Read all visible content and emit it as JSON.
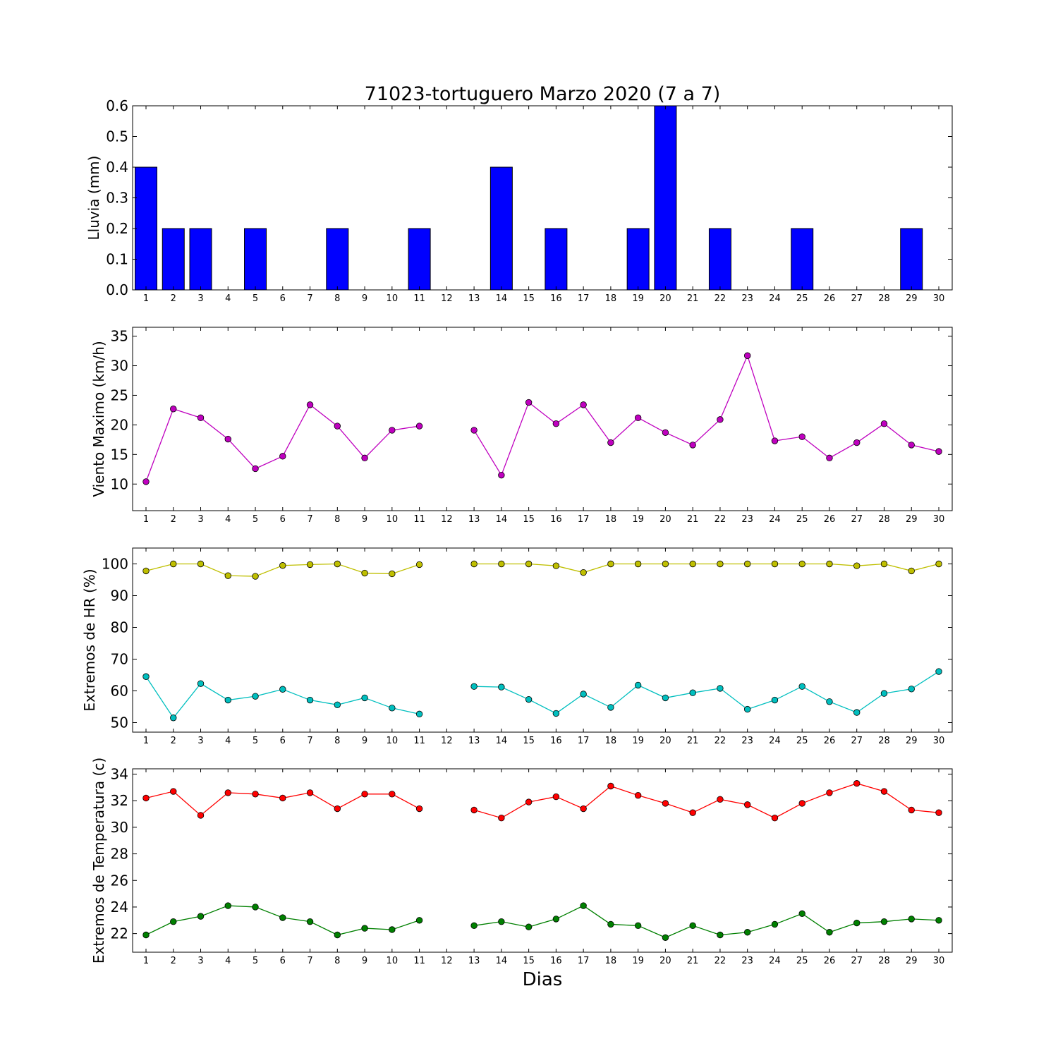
{
  "title": "71023-tortuguero Marzo 2020  (7 a 7)",
  "xlabel": "Dias",
  "chart_data": [
    {
      "type": "bar",
      "ylabel": "Lluvia (mm)",
      "ylim": [
        0,
        0.6
      ],
      "yticks": [
        0.0,
        0.1,
        0.2,
        0.3,
        0.4,
        0.5,
        0.6
      ],
      "ytick_decimals": 1,
      "categories": [
        1,
        2,
        3,
        4,
        5,
        6,
        7,
        8,
        9,
        10,
        11,
        12,
        13,
        14,
        15,
        16,
        17,
        18,
        19,
        20,
        21,
        22,
        23,
        24,
        25,
        26,
        27,
        28,
        29,
        30
      ],
      "series": [
        {
          "values": [
            0.4,
            0.2,
            0.2,
            0,
            0.2,
            0,
            0,
            0.2,
            0,
            0,
            0.2,
            0,
            0,
            0.4,
            0,
            0.2,
            0,
            0,
            0.2,
            0.6,
            0,
            0.2,
            0,
            0,
            0.2,
            0,
            0,
            0,
            0.2,
            0
          ],
          "color": "#0000ff"
        }
      ]
    },
    {
      "type": "line",
      "ylabel": "Viento Maximo (km/h)",
      "ylim": [
        5.5,
        36.5
      ],
      "yticks": [
        10,
        15,
        20,
        25,
        30,
        35
      ],
      "ytick_decimals": 0,
      "x": [
        1,
        2,
        3,
        4,
        5,
        6,
        7,
        8,
        9,
        10,
        11,
        12,
        13,
        14,
        15,
        16,
        17,
        18,
        19,
        20,
        21,
        22,
        23,
        24,
        25,
        26,
        27,
        28,
        29,
        30
      ],
      "series": [
        {
          "values": [
            10.4,
            22.7,
            21.2,
            17.6,
            12.6,
            14.7,
            23.4,
            19.8,
            14.4,
            19.1,
            19.8,
            null,
            19.1,
            11.5,
            23.8,
            20.2,
            23.4,
            17.0,
            21.2,
            18.7,
            16.6,
            20.9,
            31.7,
            17.3,
            18.0,
            14.4,
            17.0,
            20.2,
            16.6,
            15.5
          ],
          "color": "#bf00bf"
        }
      ]
    },
    {
      "type": "line",
      "ylabel": "Extremos de HR (%)",
      "ylim": [
        47,
        105
      ],
      "yticks": [
        50,
        60,
        70,
        80,
        90,
        100
      ],
      "ytick_decimals": 0,
      "x": [
        1,
        2,
        3,
        4,
        5,
        6,
        7,
        8,
        9,
        10,
        11,
        12,
        13,
        14,
        15,
        16,
        17,
        18,
        19,
        20,
        21,
        22,
        23,
        24,
        25,
        26,
        27,
        28,
        29,
        30
      ],
      "series": [
        {
          "values": [
            97.8,
            100,
            100,
            96.3,
            96.1,
            99.5,
            99.8,
            100,
            97.1,
            96.9,
            99.8,
            null,
            100,
            100,
            100,
            99.4,
            97.3,
            100,
            100,
            100,
            100,
            100,
            100,
            100,
            100,
            100,
            99.4,
            100,
            97.8,
            100
          ],
          "color": "#bfbf00"
        },
        {
          "values": [
            64.5,
            51.5,
            62.3,
            57.1,
            58.3,
            60.5,
            57.1,
            55.6,
            57.8,
            54.6,
            52.7,
            null,
            61.4,
            61.2,
            57.3,
            52.9,
            59.0,
            54.8,
            61.8,
            57.8,
            59.4,
            60.8,
            54.2,
            57.1,
            61.4,
            56.6,
            53.2,
            59.2,
            60.6,
            66.1
          ],
          "color": "#00bfbf"
        }
      ]
    },
    {
      "type": "line",
      "ylabel": "Extremos de Temperatura (c)",
      "ylim": [
        20.6,
        34.4
      ],
      "yticks": [
        22,
        24,
        26,
        28,
        30,
        32,
        34
      ],
      "ytick_decimals": 0,
      "x": [
        1,
        2,
        3,
        4,
        5,
        6,
        7,
        8,
        9,
        10,
        11,
        12,
        13,
        14,
        15,
        16,
        17,
        18,
        19,
        20,
        21,
        22,
        23,
        24,
        25,
        26,
        27,
        28,
        29,
        30
      ],
      "series": [
        {
          "values": [
            32.2,
            32.7,
            30.9,
            32.6,
            32.5,
            32.2,
            32.6,
            31.4,
            32.5,
            32.5,
            31.4,
            null,
            31.3,
            30.7,
            31.9,
            32.3,
            31.4,
            33.1,
            32.4,
            31.8,
            31.1,
            32.1,
            31.7,
            30.7,
            31.8,
            32.6,
            33.3,
            32.7,
            31.3,
            31.1
          ],
          "color": "#ff0000"
        },
        {
          "values": [
            21.9,
            22.9,
            23.3,
            24.1,
            24.0,
            23.2,
            22.9,
            21.9,
            22.4,
            22.3,
            23.0,
            null,
            22.6,
            22.9,
            22.5,
            23.1,
            24.1,
            22.7,
            22.6,
            21.7,
            22.6,
            21.9,
            22.1,
            22.7,
            23.5,
            22.1,
            22.8,
            22.9,
            23.1,
            23.0
          ],
          "color": "#008000"
        }
      ]
    }
  ]
}
